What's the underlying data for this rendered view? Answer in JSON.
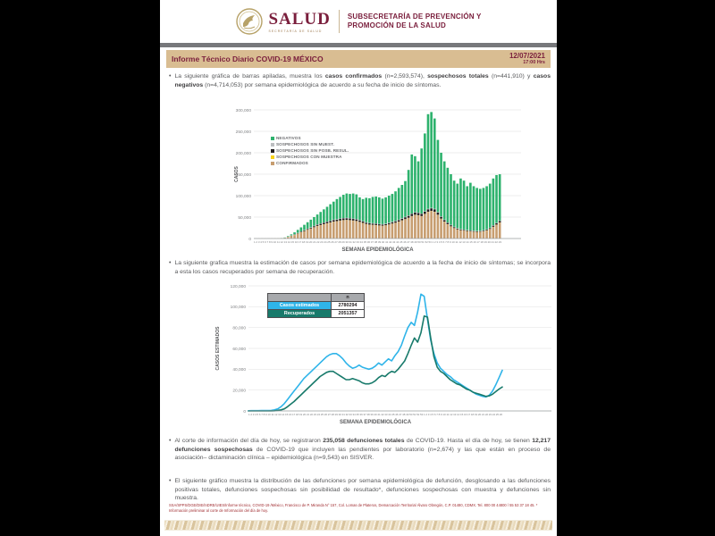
{
  "header": {
    "logo_text": "SALUD",
    "logo_sub": "SECRETARÍA DE SALUD",
    "subsecretaria_line1": "SUBSECRETARÍA DE PREVENCIÓN Y",
    "subsecretaria_line2": "PROMOCIÓN DE LA SALUD"
  },
  "title_bar": {
    "title": "Informe Técnico Diario COVID-19 MÉXICO",
    "date": "12/07/2021",
    "time": "17:00 Hrs"
  },
  "bullets": [
    {
      "segments": [
        {
          "t": "La siguiente gráfica de barras apiladas, muestra los "
        },
        {
          "t": "casos confirmados",
          "b": 1
        },
        {
          "t": " (n=2,593,574), "
        },
        {
          "t": "sospechosos totales",
          "b": 1
        },
        {
          "t": " (n=441,910) y "
        },
        {
          "t": "casos negativos",
          "b": 1
        },
        {
          "t": " (n=4,714,053) por semana epidemiológica de acuerdo a su fecha de inicio de síntomas."
        }
      ]
    },
    {
      "segments": [
        {
          "t": "La siguiente grafica muestra la estimación de casos por semana epidemiológica de acuerdo a la fecha de inicio de síntomas; se incorpora a esta los casos recuperados por semana de recuperación."
        }
      ]
    },
    {
      "segments": [
        {
          "t": "Al corte de información del día de hoy, se registraron "
        },
        {
          "t": "235,058 defunciones totales",
          "b": 1
        },
        {
          "t": " de COVID-19. Hasta el día de hoy, se tienen "
        },
        {
          "t": "12,217 defunciones sospechosas",
          "b": 1
        },
        {
          "t": " de COVID-19 que incluyen las pendientes por laboratorio (n=2,674) y las que están en proceso de asociación– dictaminación clínica – epidemiológica (n=9,543) en SISVER."
        }
      ]
    },
    {
      "segments": [
        {
          "t": "El siguiente gráfico muestra la distribución de las defunciones por semana epidemiológica de defunción, desglosando a las defunciones positivas totales, defunciones sospechosas sin posibilidad de resultado*, defunciones sospechosas con muestra y defunciones sin muestra."
        }
      ]
    }
  ],
  "footer": {
    "line1": "SSA/SPPS/DGE/DIE/InDRE/UIES/Informe técnico, COVID-19 /México, Francisco de P. Miranda N° 157, Col. Lomas de Plateros, Demarcación Territorial Álvaro Obregón, C.P. 01480, CDMX.",
    "line2": "Tel. 800 00 44800 / 55 53 37 18 45. * Información preliminar al corte de Información del día de hoy."
  },
  "colors": {
    "maroon": "#7a1e3c",
    "tan_bar": "#d9bd92",
    "gray_rule": "#77787b",
    "negativos": "#2db26d",
    "confirmados": "#c79d6f",
    "sosp_sin_posb": "#231f20",
    "sosp_con_muestra": "#f7d117",
    "sosp_sin_muestra": "#bcbec0",
    "estimados": "#2fb4e9",
    "recuperados": "#187a6b",
    "footer_red": "#a02c30"
  },
  "chart_data": [
    {
      "type": "bar",
      "stacked": true,
      "xlabel": "SEMANA EPIDEMIOLÓGICA",
      "ylabel": "CASOS",
      "ylim": [
        0,
        300000
      ],
      "yticks": [
        0,
        50000,
        100000,
        150000,
        200000,
        250000,
        300000
      ],
      "grid": true,
      "legend_position": "upper-left-inside",
      "categories": [
        1,
        2,
        3,
        4,
        5,
        6,
        7,
        8,
        9,
        10,
        11,
        12,
        13,
        14,
        15,
        16,
        17,
        18,
        19,
        20,
        21,
        22,
        23,
        24,
        25,
        26,
        27,
        28,
        29,
        30,
        31,
        32,
        33,
        34,
        35,
        36,
        37,
        38,
        39,
        40,
        41,
        42,
        43,
        44,
        45,
        46,
        47,
        48,
        49,
        50,
        51,
        52,
        53,
        1,
        2,
        3,
        4,
        5,
        6,
        7,
        8,
        9,
        10,
        11,
        12,
        13,
        14,
        15,
        16,
        17,
        18,
        19,
        20,
        21,
        22,
        23
      ],
      "series": [
        {
          "name": "CONFIRMADOS",
          "color": "#c79d6f",
          "values": [
            300,
            300,
            350,
            400,
            400,
            450,
            500,
            600,
            800,
            1500,
            3000,
            5500,
            8000,
            11000,
            14000,
            17000,
            20000,
            23000,
            26000,
            29000,
            31000,
            33000,
            35000,
            37000,
            39000,
            40000,
            41500,
            42500,
            43000,
            42500,
            41500,
            40500,
            38500,
            36000,
            33500,
            32000,
            31500,
            31000,
            30000,
            29500,
            30500,
            32500,
            34500,
            36500,
            39000,
            42000,
            45000,
            48000,
            52000,
            55000,
            54000,
            52000,
            57000,
            62000,
            64000,
            62000,
            55000,
            46000,
            39000,
            33000,
            28000,
            24000,
            21000,
            19000,
            18000,
            17000,
            16000,
            15500,
            15000,
            15500,
            16500,
            18500,
            22000,
            27000,
            32000,
            37000
          ]
        },
        {
          "name": "SOSPECHOSOS CON MUESTRA",
          "color": "#f7d117",
          "values": [
            20,
            20,
            20,
            20,
            20,
            20,
            20,
            20,
            20,
            20,
            400,
            400,
            400,
            400,
            400,
            400,
            400,
            400,
            400,
            400,
            400,
            400,
            400,
            400,
            400,
            400,
            400,
            400,
            400,
            400,
            400,
            400,
            400,
            400,
            400,
            400,
            400,
            400,
            400,
            400,
            400,
            400,
            400,
            400,
            400,
            400,
            400,
            400,
            400,
            400,
            400,
            400,
            400,
            400,
            400,
            400,
            400,
            400,
            400,
            400,
            400,
            400,
            400,
            400,
            400,
            400,
            400,
            400,
            400,
            400,
            400,
            400,
            400,
            400,
            400,
            400
          ]
        },
        {
          "name": "SOSPECHOSOS SIN POSB. RESUL.",
          "color": "#231f20",
          "values": [
            30,
            30,
            30,
            40,
            40,
            50,
            50,
            60,
            80,
            150,
            300,
            500,
            700,
            900,
            1200,
            1500,
            1800,
            2100,
            2400,
            2700,
            2900,
            3100,
            3300,
            3500,
            3700,
            3800,
            3900,
            4000,
            4000,
            3900,
            3800,
            3700,
            3500,
            3300,
            3100,
            3000,
            2900,
            2900,
            2800,
            2700,
            2800,
            3000,
            3200,
            3400,
            3600,
            3900,
            4200,
            4500,
            4900,
            5200,
            5100,
            4900,
            5400,
            5900,
            6100,
            5900,
            5200,
            4300,
            3700,
            3100,
            2600,
            2200,
            2000,
            1800,
            1700,
            1600,
            1500,
            1450,
            1400,
            1450,
            1550,
            1750,
            2100,
            2600,
            3100,
            3600
          ]
        },
        {
          "name": "SOSPECHOSOS SIN MUEST.",
          "color": "#bcbec0",
          "values": [
            30,
            30,
            30,
            30,
            30,
            30,
            30,
            30,
            30,
            30,
            1000,
            1000,
            1000,
            1000,
            1000,
            1000,
            1000,
            1000,
            1000,
            1000,
            1000,
            1000,
            1000,
            1000,
            1000,
            1000,
            1000,
            1000,
            1000,
            1000,
            1000,
            1000,
            1000,
            1000,
            1000,
            1000,
            1000,
            1000,
            1000,
            1000,
            1000,
            1000,
            1000,
            1000,
            1000,
            1000,
            1000,
            1000,
            1000,
            1000,
            1000,
            1000,
            1000,
            1000,
            1000,
            1000,
            1000,
            1000,
            1000,
            1000,
            1000,
            1000,
            1000,
            1000,
            1000,
            1000,
            1000,
            1000,
            1000,
            1000,
            1000,
            1000,
            1000,
            1000,
            1000,
            1000
          ]
        },
        {
          "name": "NEGATIVOS",
          "color": "#2db26d",
          "values": [
            20,
            70,
            70,
            60,
            110,
            100,
            100,
            90,
            220,
            650,
            1300,
            2300,
            4300,
            6900,
            9400,
            12100,
            14800,
            17500,
            20200,
            22900,
            26700,
            30500,
            34300,
            38100,
            41900,
            46800,
            50200,
            54100,
            56600,
            56200,
            58300,
            57400,
            52600,
            51300,
            57000,
            57600,
            61200,
            62700,
            61800,
            59400,
            61300,
            63100,
            64900,
            68700,
            74000,
            77700,
            83400,
            106100,
            137700,
            130400,
            119500,
            151700,
            181200,
            220700,
            223500,
            210700,
            168400,
            148300,
            135900,
            127500,
            118000,
            107400,
            103600,
            117800,
            113900,
            102000,
            111100,
            103650,
            100200,
            97550,
            98550,
            100350,
            102500,
            109000,
            111500,
            107900
          ]
        }
      ],
      "legend": [
        {
          "label": "NEGATIVOS",
          "color": "#2db26d"
        },
        {
          "label": "SOSPECHOSOS SIN MUEST.",
          "color": "#bcbec0"
        },
        {
          "label": "SOSPECHOSOS SIN POSB. RESUL.",
          "color": "#231f20"
        },
        {
          "label": "SOSPECHOSOS CON MUESTRA",
          "color": "#f7d117"
        },
        {
          "label": "CONFIRMADOS",
          "color": "#c79d6f"
        }
      ]
    },
    {
      "type": "line",
      "xlabel": "SEMANA EPIDEMIOLÓGICA",
      "ylabel": "CASOS ESTIMADOS",
      "ylim": [
        0,
        120000
      ],
      "yticks": [
        0,
        20000,
        40000,
        60000,
        80000,
        100000,
        120000
      ],
      "grid": true,
      "categories": [
        1,
        2,
        3,
        4,
        5,
        6,
        7,
        8,
        9,
        10,
        11,
        12,
        13,
        14,
        15,
        16,
        17,
        18,
        19,
        20,
        21,
        22,
        23,
        24,
        25,
        26,
        27,
        28,
        29,
        30,
        31,
        32,
        33,
        34,
        35,
        36,
        37,
        38,
        39,
        40,
        41,
        42,
        43,
        44,
        45,
        46,
        47,
        48,
        49,
        50,
        51,
        52,
        53,
        1,
        2,
        3,
        4,
        5,
        6,
        7,
        8,
        9,
        10,
        11,
        12,
        13,
        14,
        15,
        16,
        17,
        18,
        19,
        20,
        21,
        22,
        23,
        24,
        25,
        26
      ],
      "series": [
        {
          "name": "Casos estimados",
          "color": "#2fb4e9",
          "n": "2780294",
          "values": [
            200,
            250,
            300,
            300,
            350,
            400,
            450,
            500,
            1000,
            2000,
            4000,
            7000,
            11000,
            15000,
            19000,
            23000,
            27000,
            31000,
            34000,
            37000,
            40000,
            43000,
            46000,
            49000,
            52000,
            54000,
            55000,
            55000,
            53000,
            50000,
            46000,
            43000,
            41000,
            42000,
            44000,
            42000,
            41000,
            40000,
            41000,
            43000,
            46000,
            44000,
            47000,
            50000,
            48000,
            53000,
            57000,
            63000,
            72000,
            80000,
            85000,
            82000,
            95000,
            112000,
            110000,
            88000,
            68000,
            55000,
            46000,
            41000,
            38000,
            35000,
            33000,
            30000,
            28000,
            26000,
            24000,
            22000,
            20000,
            18000,
            16000,
            15000,
            14000,
            13500,
            15000,
            19000,
            25000,
            32000,
            39000
          ]
        },
        {
          "name": "Recuperados",
          "color": "#187a6b",
          "n": "2051357",
          "values": [
            0,
            0,
            0,
            0,
            0,
            0,
            0,
            100,
            200,
            500,
            1000,
            2000,
            4000,
            6500,
            9000,
            12000,
            15000,
            18000,
            21000,
            24000,
            27000,
            30000,
            33000,
            35000,
            37000,
            38000,
            38000,
            36000,
            34000,
            32000,
            30000,
            30000,
            31000,
            30000,
            29000,
            27000,
            26000,
            26000,
            27000,
            29000,
            32000,
            34000,
            33000,
            36000,
            38000,
            37000,
            40000,
            44000,
            48000,
            55000,
            63000,
            70000,
            66000,
            75000,
            91000,
            90000,
            70000,
            52000,
            42000,
            38000,
            36000,
            33000,
            30000,
            28000,
            26000,
            25000,
            23000,
            21000,
            20000,
            18000,
            17000,
            16000,
            15000,
            14000,
            14500,
            16000,
            18500,
            21000,
            23000
          ]
        }
      ],
      "table": {
        "header": "n",
        "rows": [
          {
            "label": "Casos estimados",
            "value": "2780294",
            "color": "#2fb4e9"
          },
          {
            "label": "Recuperados",
            "value": "2051357",
            "color": "#187a6b"
          }
        ]
      }
    }
  ]
}
